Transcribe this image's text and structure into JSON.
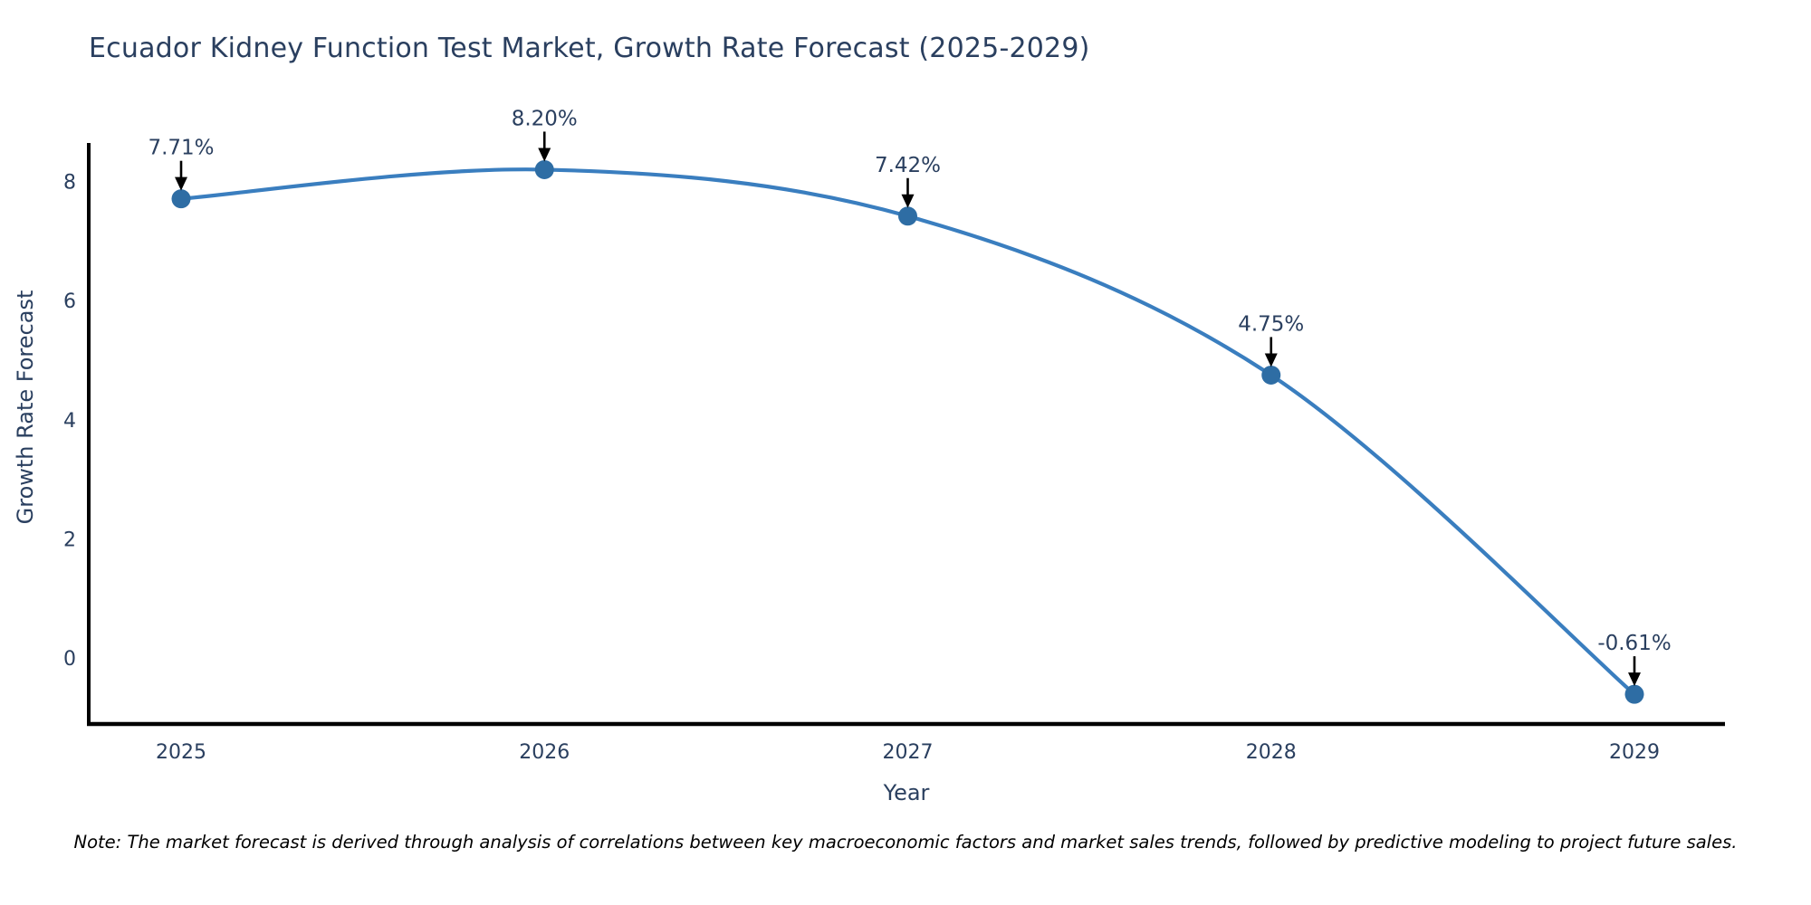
{
  "page": {
    "background": "#ffffff"
  },
  "chart": {
    "note": "Note: The market forecast is derived through analysis of correlations between key macroeconomic factors and market sales trends, followed by predictive modeling to project future sales."
  },
  "chart_data": {
    "type": "line",
    "title": "Ecuador Kidney Function Test Market, Growth Rate Forecast (2025-2029)",
    "xlabel": "Year",
    "ylabel": "Growth Rate Forecast",
    "x": [
      2025,
      2026,
      2027,
      2028,
      2029
    ],
    "series": [
      {
        "name": "Growth Rate Forecast",
        "values": [
          7.71,
          8.2,
          7.42,
          4.75,
          -0.61
        ]
      }
    ],
    "point_labels": [
      "7.71%",
      "8.20%",
      "7.42%",
      "4.75%",
      "-0.61%"
    ],
    "yticks": [
      0,
      2,
      4,
      6,
      8
    ],
    "ylim": [
      -1.15,
      8.65
    ],
    "line_shape": "spline",
    "grid": false,
    "legend": "none",
    "annotation_style": "label-above-with-down-arrow",
    "colors": {
      "line": "#3a7ebf",
      "marker": "#2e6da4",
      "text": "#2a3f5f",
      "axis": "#000000",
      "arrow": "#000000",
      "note_text": "#000000"
    }
  }
}
